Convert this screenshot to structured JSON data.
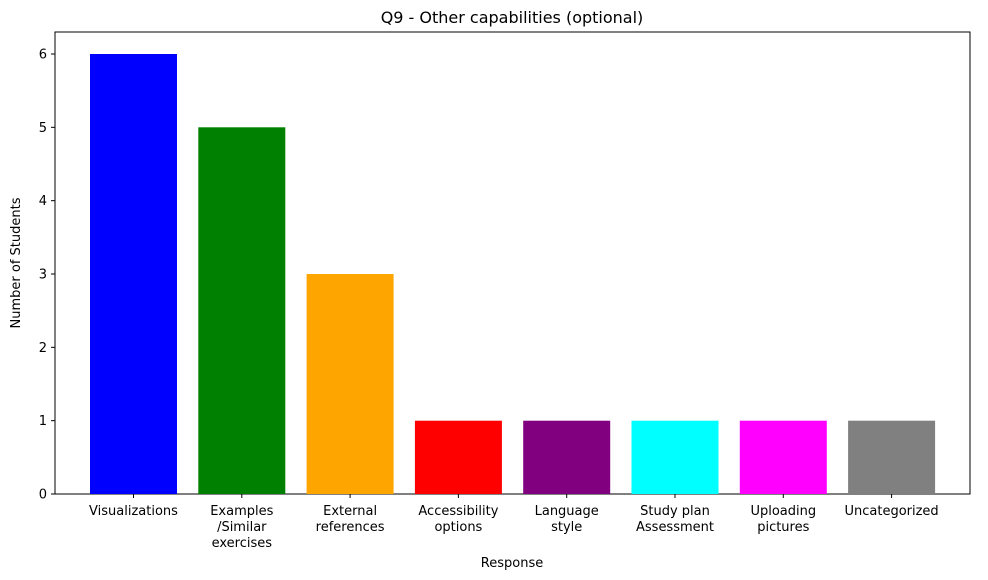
{
  "chart_data": {
    "type": "bar",
    "title": "Q9 - Other capabilities (optional)",
    "xlabel": "Response",
    "ylabel": "Number of Students",
    "ylim": [
      0,
      6.3
    ],
    "yticks": [
      0,
      1,
      2,
      3,
      4,
      5,
      6
    ],
    "grid": false,
    "categories": [
      "Visualizations",
      "Examples\n/Similar\nexercises",
      "External\nreferences",
      "Accessibility\noptions",
      "Language\nstyle",
      "Study plan\nAssessment",
      "Uploading\npictures",
      "Uncategorized"
    ],
    "values": [
      6,
      5,
      3,
      1,
      1,
      1,
      1,
      1
    ],
    "colors": [
      "#0000ff",
      "#008000",
      "#ffa500",
      "#ff0000",
      "#800080",
      "#00ffff",
      "#ff00ff",
      "#808080"
    ]
  }
}
